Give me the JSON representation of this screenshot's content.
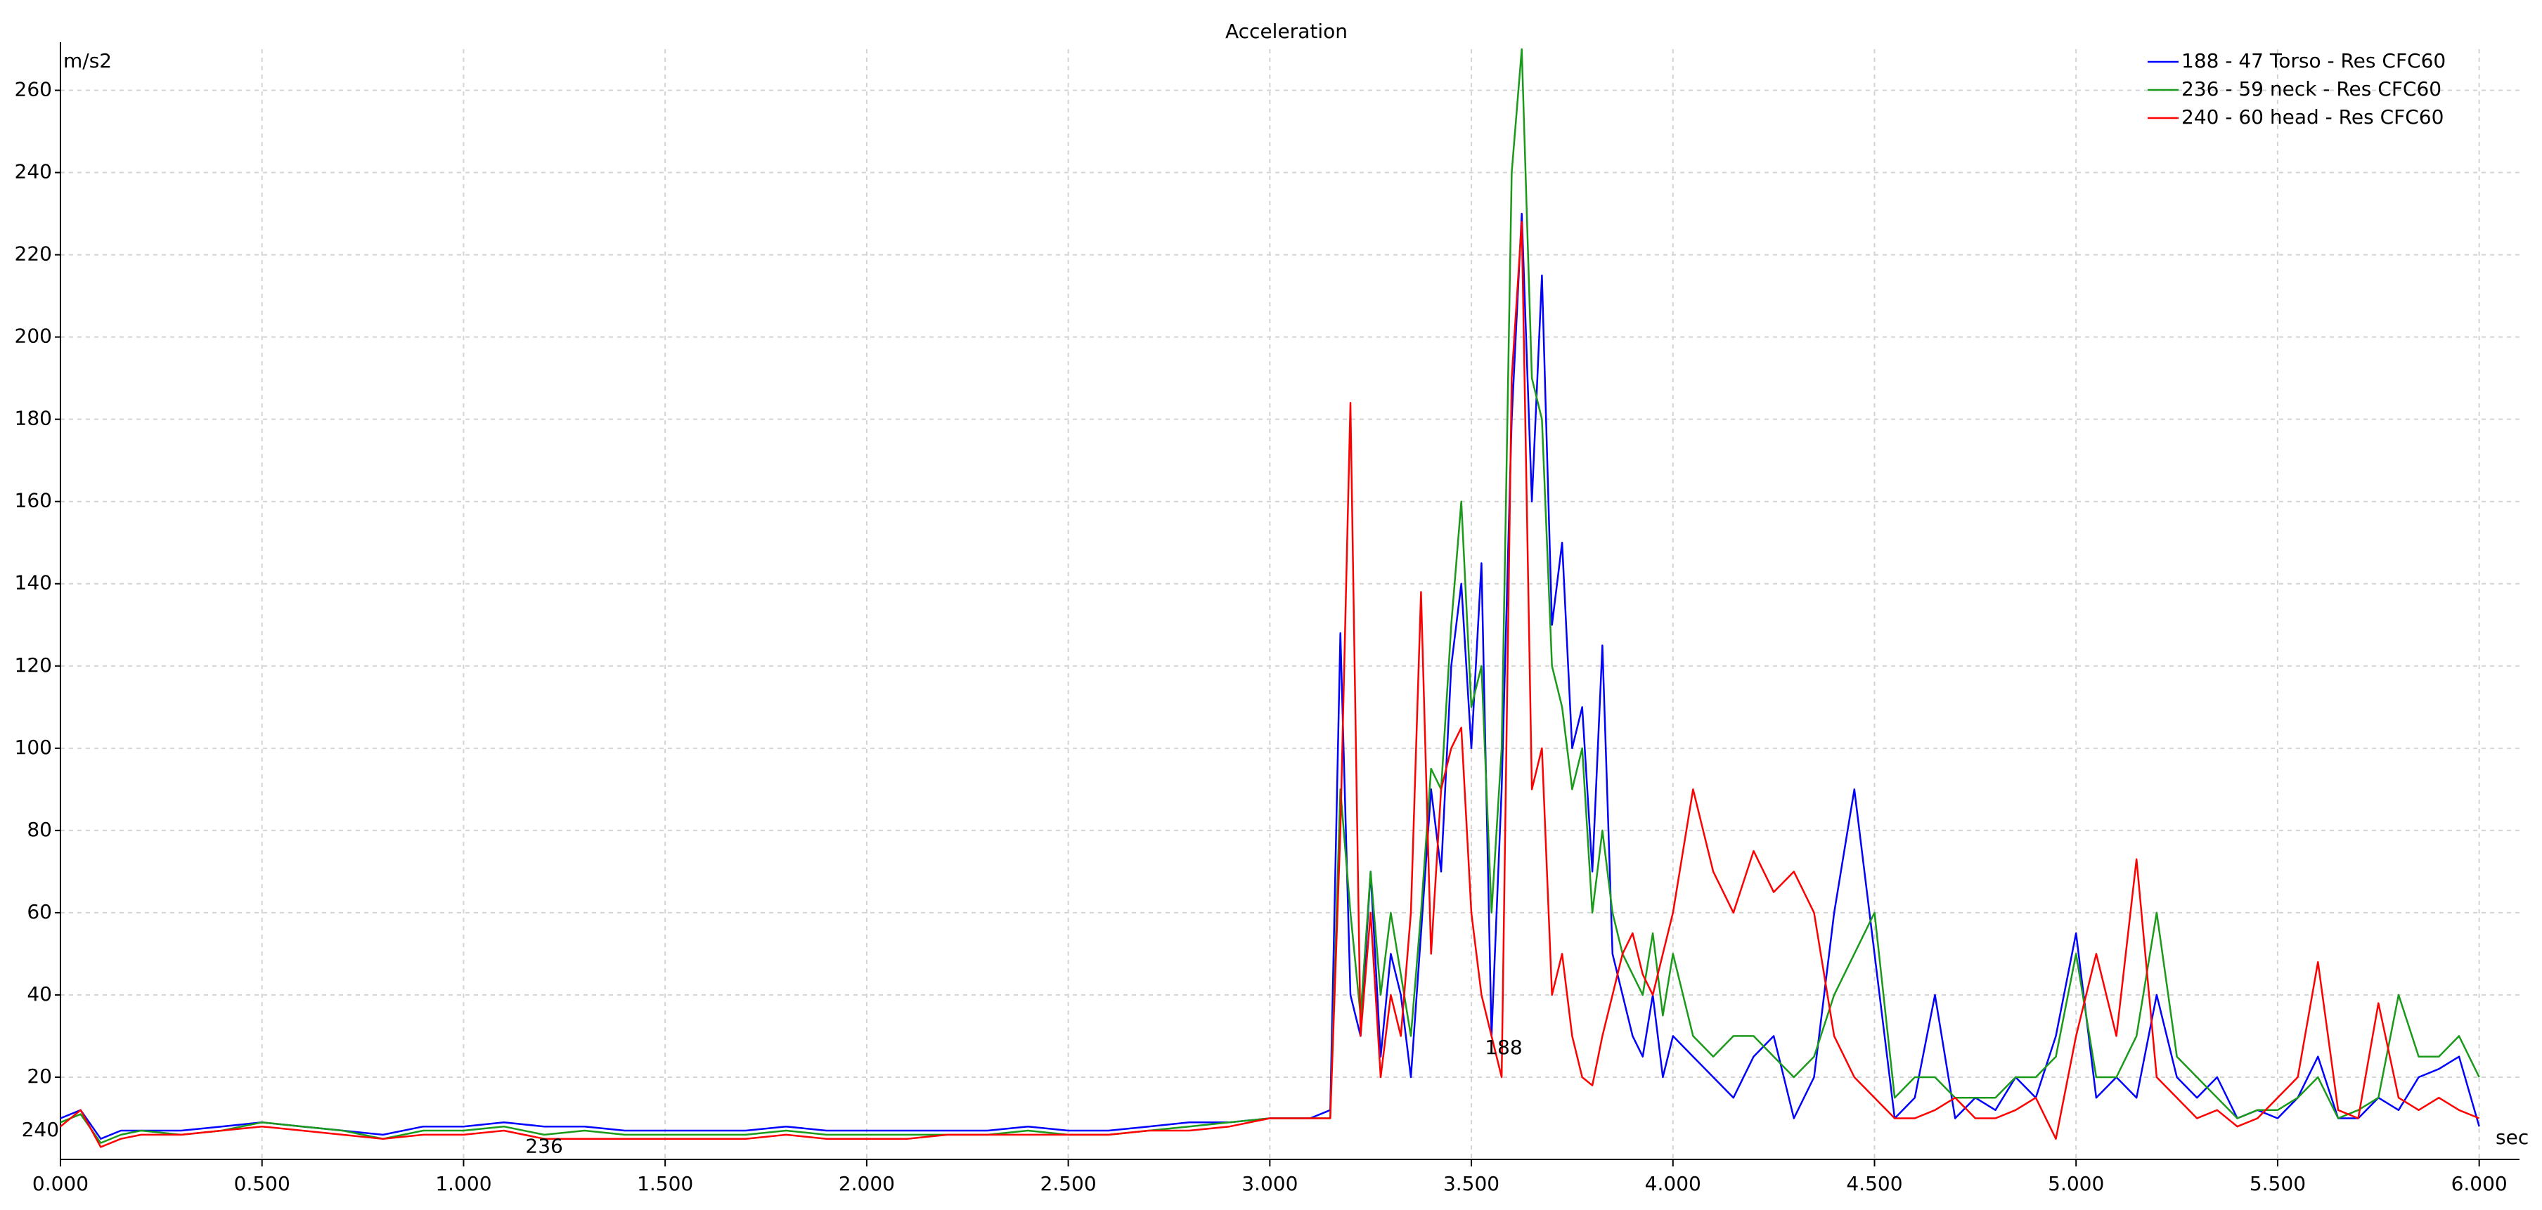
{
  "chart_data": {
    "type": "line",
    "title": "Acceleration",
    "y_label": "m/s2",
    "x_label": "sec",
    "xlim": [
      0,
      6.1
    ],
    "ylim": [
      0,
      270
    ],
    "xticks": [
      {
        "value": 0,
        "label": "0.000"
      },
      {
        "value": 0.5,
        "label": "0.500"
      },
      {
        "value": 1,
        "label": "1.000"
      },
      {
        "value": 1.5,
        "label": "1.500"
      },
      {
        "value": 2,
        "label": "2.000"
      },
      {
        "value": 2.5,
        "label": "2.500"
      },
      {
        "value": 3,
        "label": "3.000"
      },
      {
        "value": 3.5,
        "label": "3.500"
      },
      {
        "value": 4,
        "label": "4.000"
      },
      {
        "value": 4.5,
        "label": "4.500"
      },
      {
        "value": 5,
        "label": "5.000"
      },
      {
        "value": 5.5,
        "label": "5.500"
      },
      {
        "value": 6,
        "label": "6.000"
      }
    ],
    "yticks": [
      20,
      40,
      60,
      80,
      100,
      120,
      140,
      160,
      180,
      200,
      220,
      240,
      260
    ],
    "grid": true,
    "legend": "top-right",
    "x": [
      0,
      0.05,
      0.1,
      0.15,
      0.2,
      0.3,
      0.4,
      0.5,
      0.6,
      0.7,
      0.8,
      0.9,
      1.0,
      1.1,
      1.2,
      1.3,
      1.4,
      1.5,
      1.6,
      1.7,
      1.8,
      1.9,
      2.0,
      2.1,
      2.2,
      2.3,
      2.4,
      2.5,
      2.6,
      2.7,
      2.8,
      2.9,
      3.0,
      3.1,
      3.15,
      3.175,
      3.2,
      3.225,
      3.25,
      3.275,
      3.3,
      3.325,
      3.35,
      3.375,
      3.4,
      3.425,
      3.45,
      3.475,
      3.5,
      3.525,
      3.55,
      3.575,
      3.6,
      3.625,
      3.65,
      3.675,
      3.7,
      3.725,
      3.75,
      3.775,
      3.8,
      3.825,
      3.85,
      3.875,
      3.9,
      3.925,
      3.95,
      3.975,
      4.0,
      4.05,
      4.1,
      4.15,
      4.2,
      4.25,
      4.3,
      4.35,
      4.4,
      4.45,
      4.5,
      4.55,
      4.6,
      4.65,
      4.7,
      4.75,
      4.8,
      4.85,
      4.9,
      4.95,
      5.0,
      5.05,
      5.1,
      5.15,
      5.2,
      5.25,
      5.3,
      5.35,
      5.4,
      5.45,
      5.5,
      5.55,
      5.6,
      5.65,
      5.7,
      5.75,
      5.8,
      5.85,
      5.9,
      5.95,
      6.0
    ],
    "series": [
      {
        "name": "188 - 47 Torso - Res CFC60",
        "color": "#0000ff",
        "values": [
          10,
          12,
          5,
          7,
          7,
          7,
          8,
          9,
          8,
          7,
          6,
          8,
          8,
          9,
          8,
          8,
          7,
          7,
          7,
          7,
          8,
          7,
          7,
          7,
          7,
          7,
          8,
          7,
          7,
          8,
          9,
          9,
          10,
          10,
          12,
          128,
          40,
          30,
          70,
          25,
          50,
          40,
          20,
          55,
          90,
          70,
          120,
          140,
          100,
          145,
          30,
          90,
          180,
          230,
          160,
          215,
          130,
          150,
          100,
          110,
          70,
          125,
          50,
          40,
          30,
          25,
          40,
          20,
          30,
          25,
          20,
          15,
          25,
          30,
          10,
          20,
          60,
          90,
          50,
          10,
          15,
          40,
          10,
          15,
          12,
          20,
          15,
          30,
          55,
          15,
          20,
          15,
          40,
          20,
          15,
          20,
          10,
          12,
          10,
          15,
          25,
          10,
          10,
          15,
          12,
          20,
          22,
          25,
          8
        ]
      },
      {
        "name": "236 - 59 neck - Res CFC60",
        "color": "#1a9a1a",
        "values": [
          9,
          11,
          4,
          6,
          7,
          6,
          7,
          9,
          8,
          7,
          5,
          7,
          7,
          8,
          6,
          7,
          6,
          6,
          6,
          6,
          7,
          6,
          6,
          6,
          6,
          6,
          7,
          6,
          6,
          7,
          8,
          9,
          10,
          10,
          10,
          90,
          60,
          35,
          70,
          40,
          60,
          45,
          30,
          60,
          95,
          90,
          130,
          160,
          110,
          120,
          60,
          100,
          240,
          270,
          190,
          180,
          120,
          110,
          90,
          100,
          60,
          80,
          60,
          50,
          45,
          40,
          55,
          35,
          50,
          30,
          25,
          30,
          30,
          25,
          20,
          25,
          40,
          50,
          60,
          15,
          20,
          20,
          15,
          15,
          15,
          20,
          20,
          25,
          50,
          20,
          20,
          30,
          60,
          25,
          20,
          15,
          10,
          12,
          12,
          15,
          20,
          10,
          12,
          15,
          40,
          25,
          25,
          30,
          20
        ]
      },
      {
        "name": "240 - 60 head - Res CFC60",
        "color": "#ff0000",
        "values": [
          8,
          12,
          3,
          5,
          6,
          6,
          7,
          8,
          7,
          6,
          5,
          6,
          6,
          7,
          5,
          5,
          5,
          5,
          5,
          5,
          6,
          5,
          5,
          5,
          6,
          6,
          6,
          6,
          6,
          7,
          7,
          8,
          10,
          10,
          10,
          80,
          184,
          30,
          60,
          20,
          40,
          30,
          60,
          138,
          50,
          90,
          100,
          105,
          60,
          40,
          30,
          20,
          190,
          228,
          90,
          100,
          40,
          50,
          30,
          20,
          18,
          30,
          40,
          50,
          55,
          45,
          40,
          50,
          60,
          90,
          70,
          60,
          75,
          65,
          70,
          60,
          30,
          20,
          15,
          10,
          10,
          12,
          15,
          10,
          10,
          12,
          15,
          5,
          30,
          50,
          30,
          73,
          20,
          15,
          10,
          12,
          8,
          10,
          15,
          20,
          48,
          12,
          10,
          38,
          15,
          12,
          15,
          12,
          10
        ]
      }
    ],
    "annotations": [
      {
        "text": "240",
        "x": -0.05,
        "y": 7,
        "color": "#ff0000"
      },
      {
        "text": "236",
        "x": 1.2,
        "y": 3,
        "color": "#1a9a1a"
      },
      {
        "text": "188",
        "x": 3.58,
        "y": 27,
        "color": "#0000ff"
      }
    ]
  }
}
